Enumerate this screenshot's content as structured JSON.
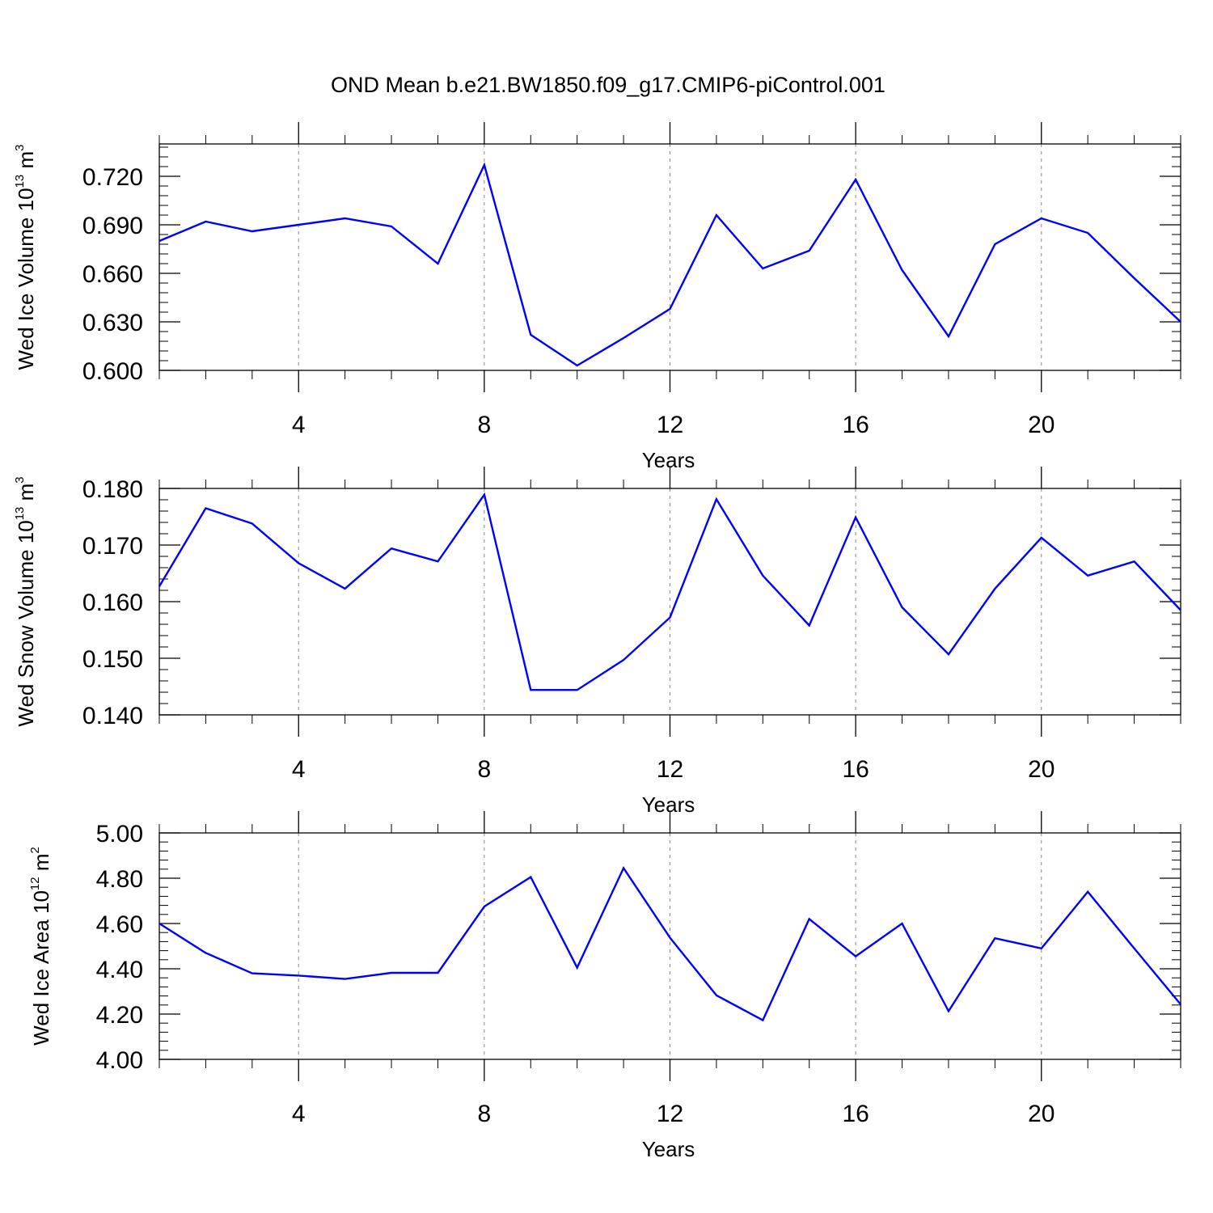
{
  "title": "OND Mean b.e21.BW1850.f09_g17.CMIP6-piControl.001",
  "chart_data": [
    {
      "type": "line",
      "ylabel": {
        "text": "Wed Ice Volume 10",
        "exp": "13",
        "unit": " m",
        "unit_exp": "3"
      },
      "xlabel": "Years",
      "xlim": [
        1,
        23
      ],
      "ylim": [
        0.6,
        0.74
      ],
      "xticks": [
        4,
        8,
        12,
        16,
        20
      ],
      "yticks": [
        0.6,
        0.63,
        0.66,
        0.69,
        0.72
      ],
      "ytick_labels": [
        "0.600",
        "0.630",
        "0.660",
        "0.690",
        "0.720"
      ],
      "grid": "vertical dashed at x ticks",
      "color": "#0000ff",
      "x": [
        1,
        2,
        3,
        4,
        5,
        6,
        7,
        8,
        9,
        10,
        11,
        12,
        13,
        14,
        15,
        16,
        17,
        18,
        19,
        20,
        21,
        22,
        23
      ],
      "values": [
        0.68,
        0.692,
        0.686,
        0.69,
        0.694,
        0.689,
        0.666,
        0.727,
        0.622,
        0.603,
        0.62,
        0.638,
        0.696,
        0.663,
        0.674,
        0.718,
        0.662,
        0.621,
        0.678,
        0.694,
        0.685,
        0.657,
        0.63
      ]
    },
    {
      "type": "line",
      "ylabel": {
        "text": "Wed Snow Volume 10",
        "exp": "13",
        "unit": " m",
        "unit_exp": "3"
      },
      "xlabel": "Years",
      "xlim": [
        1,
        23
      ],
      "ylim": [
        0.14,
        0.18
      ],
      "xticks": [
        4,
        8,
        12,
        16,
        20
      ],
      "yticks": [
        0.14,
        0.15,
        0.16,
        0.17,
        0.18
      ],
      "ytick_labels": [
        "0.140",
        "0.150",
        "0.160",
        "0.170",
        "0.180"
      ],
      "grid": "vertical dashed at x ticks",
      "color": "#0000ff",
      "x": [
        1,
        2,
        3,
        4,
        5,
        6,
        7,
        8,
        9,
        10,
        11,
        12,
        13,
        14,
        15,
        16,
        17,
        18,
        19,
        20,
        21,
        22,
        23
      ],
      "values": [
        0.1627,
        0.1765,
        0.1738,
        0.1668,
        0.1623,
        0.1694,
        0.1671,
        0.1789,
        0.1444,
        0.1444,
        0.1497,
        0.1572,
        0.1781,
        0.1646,
        0.1558,
        0.1749,
        0.159,
        0.1507,
        0.1623,
        0.1713,
        0.1646,
        0.1671,
        0.1585
      ]
    },
    {
      "type": "line",
      "ylabel": {
        "text": "Wed Ice Area 10",
        "exp": "12",
        "unit": " m",
        "unit_exp": "2"
      },
      "xlabel": "Years",
      "xlim": [
        1,
        23
      ],
      "ylim": [
        4.0,
        5.0
      ],
      "xticks": [
        4,
        8,
        12,
        16,
        20
      ],
      "yticks": [
        4.0,
        4.2,
        4.4,
        4.6,
        4.8,
        5.0
      ],
      "ytick_labels": [
        "4.00",
        "4.20",
        "4.40",
        "4.60",
        "4.80",
        "5.00"
      ],
      "grid": "vertical dashed at x ticks",
      "color": "#0000ff",
      "x": [
        1,
        2,
        3,
        4,
        5,
        6,
        7,
        8,
        9,
        10,
        11,
        12,
        13,
        14,
        15,
        16,
        17,
        18,
        19,
        20,
        21,
        22,
        23
      ],
      "values": [
        4.6,
        4.47,
        4.38,
        4.37,
        4.355,
        4.382,
        4.382,
        4.675,
        4.805,
        4.405,
        4.845,
        4.537,
        4.283,
        4.173,
        4.62,
        4.455,
        4.6,
        4.213,
        4.535,
        4.49,
        4.74,
        4.49,
        4.243
      ]
    }
  ]
}
